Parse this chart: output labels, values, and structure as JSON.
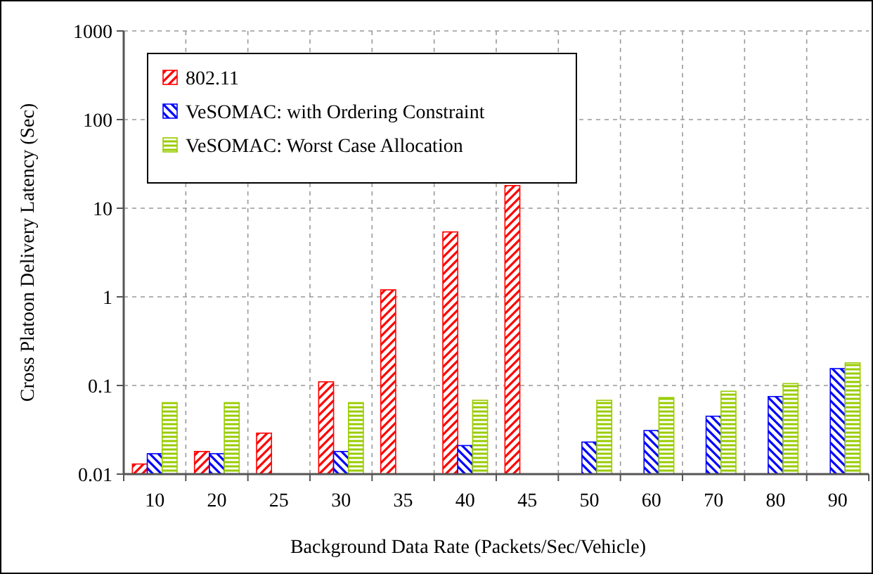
{
  "chart_data": {
    "type": "bar",
    "xlabel": "Background Data Rate (Packets/Sec/Vehicle)",
    "ylabel": "Cross Platoon Delivery Latency (Sec)",
    "categories": [
      "10",
      "20",
      "25",
      "30",
      "35",
      "40",
      "45",
      "50",
      "60",
      "70",
      "80",
      "90"
    ],
    "series": [
      {
        "name": "802.11",
        "color": "#ff0000",
        "values": [
          0.013,
          0.018,
          0.029,
          0.11,
          1.2,
          5.4,
          18,
          null,
          null,
          null,
          null,
          null
        ]
      },
      {
        "name": "VeSOMAC: with Ordering Constraint",
        "color": "#0000ff",
        "values": [
          0.017,
          0.017,
          null,
          0.018,
          null,
          0.021,
          null,
          0.023,
          0.031,
          0.045,
          0.075,
          0.155
        ]
      },
      {
        "name": "VeSOMAC: Worst Case Allocation",
        "color": "#99cc00",
        "values": [
          0.064,
          0.064,
          null,
          0.064,
          null,
          0.068,
          null,
          0.068,
          0.073,
          0.086,
          0.105,
          0.18
        ]
      }
    ],
    "log": true,
    "ylim": [
      0.01,
      1000
    ],
    "yticks": [
      0.01,
      0.1,
      1,
      10,
      100,
      1000
    ],
    "grid": true,
    "legend": "top left"
  }
}
